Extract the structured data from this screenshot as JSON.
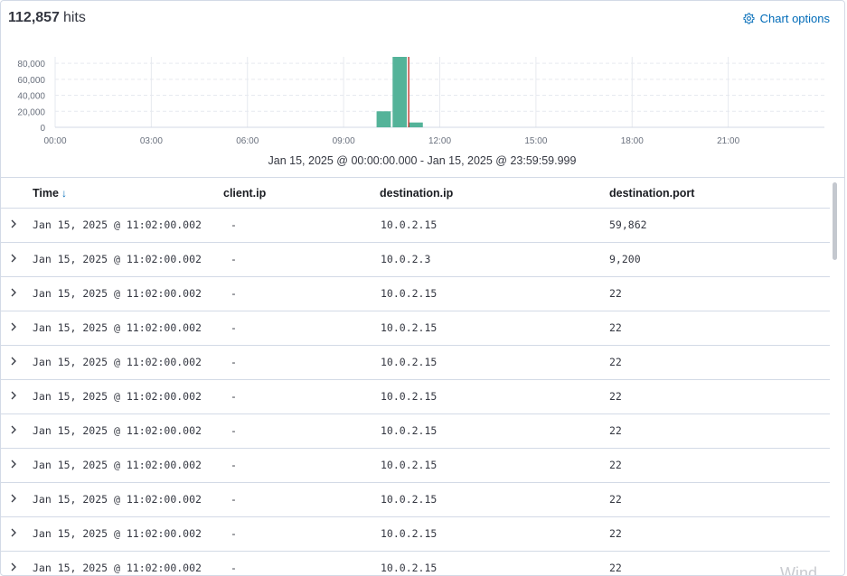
{
  "header": {
    "hits_count": "112,857",
    "hits_label": "hits",
    "chart_options_label": "Chart options"
  },
  "chart_data": {
    "type": "bar",
    "x_ticks": [
      "00:00",
      "03:00",
      "06:00",
      "09:00",
      "12:00",
      "15:00",
      "18:00",
      "21:00"
    ],
    "y_ticks": [
      "0",
      "20,000",
      "40,000",
      "60,000",
      "80,000"
    ],
    "ylim": [
      0,
      88000
    ],
    "xlim_hours": [
      0,
      24
    ],
    "bars": [
      {
        "start_hour": 10.0,
        "end_hour": 10.5,
        "value": 20000
      },
      {
        "start_hour": 10.5,
        "end_hour": 11.0,
        "value": 88000
      },
      {
        "start_hour": 11.0,
        "end_hour": 11.5,
        "value": 6000
      }
    ],
    "current_time_marker_hour": 11.03,
    "bar_color": "#54b399",
    "marker_color": "#bd271e"
  },
  "time_range": "Jan 15, 2025 @ 00:00:00.000 - Jan 15, 2025 @ 23:59:59.999",
  "table": {
    "columns": [
      "Time",
      "client.ip",
      "destination.ip",
      "destination.port"
    ],
    "rows": [
      {
        "time": "Jan 15, 2025 @ 11:02:00.002",
        "client_ip": "-",
        "destination_ip": "10.0.2.15",
        "destination_port": "59,862"
      },
      {
        "time": "Jan 15, 2025 @ 11:02:00.002",
        "client_ip": "-",
        "destination_ip": "10.0.2.3",
        "destination_port": "9,200"
      },
      {
        "time": "Jan 15, 2025 @ 11:02:00.002",
        "client_ip": "-",
        "destination_ip": "10.0.2.15",
        "destination_port": "22"
      },
      {
        "time": "Jan 15, 2025 @ 11:02:00.002",
        "client_ip": "-",
        "destination_ip": "10.0.2.15",
        "destination_port": "22"
      },
      {
        "time": "Jan 15, 2025 @ 11:02:00.002",
        "client_ip": "-",
        "destination_ip": "10.0.2.15",
        "destination_port": "22"
      },
      {
        "time": "Jan 15, 2025 @ 11:02:00.002",
        "client_ip": "-",
        "destination_ip": "10.0.2.15",
        "destination_port": "22"
      },
      {
        "time": "Jan 15, 2025 @ 11:02:00.002",
        "client_ip": "-",
        "destination_ip": "10.0.2.15",
        "destination_port": "22"
      },
      {
        "time": "Jan 15, 2025 @ 11:02:00.002",
        "client_ip": "-",
        "destination_ip": "10.0.2.15",
        "destination_port": "22"
      },
      {
        "time": "Jan 15, 2025 @ 11:02:00.002",
        "client_ip": "-",
        "destination_ip": "10.0.2.15",
        "destination_port": "22"
      },
      {
        "time": "Jan 15, 2025 @ 11:02:00.002",
        "client_ip": "-",
        "destination_ip": "10.0.2.15",
        "destination_port": "22"
      },
      {
        "time": "Jan 15, 2025 @ 11:02:00.002",
        "client_ip": "-",
        "destination_ip": "10.0.2.15",
        "destination_port": "22"
      }
    ]
  },
  "watermark": "Wind"
}
